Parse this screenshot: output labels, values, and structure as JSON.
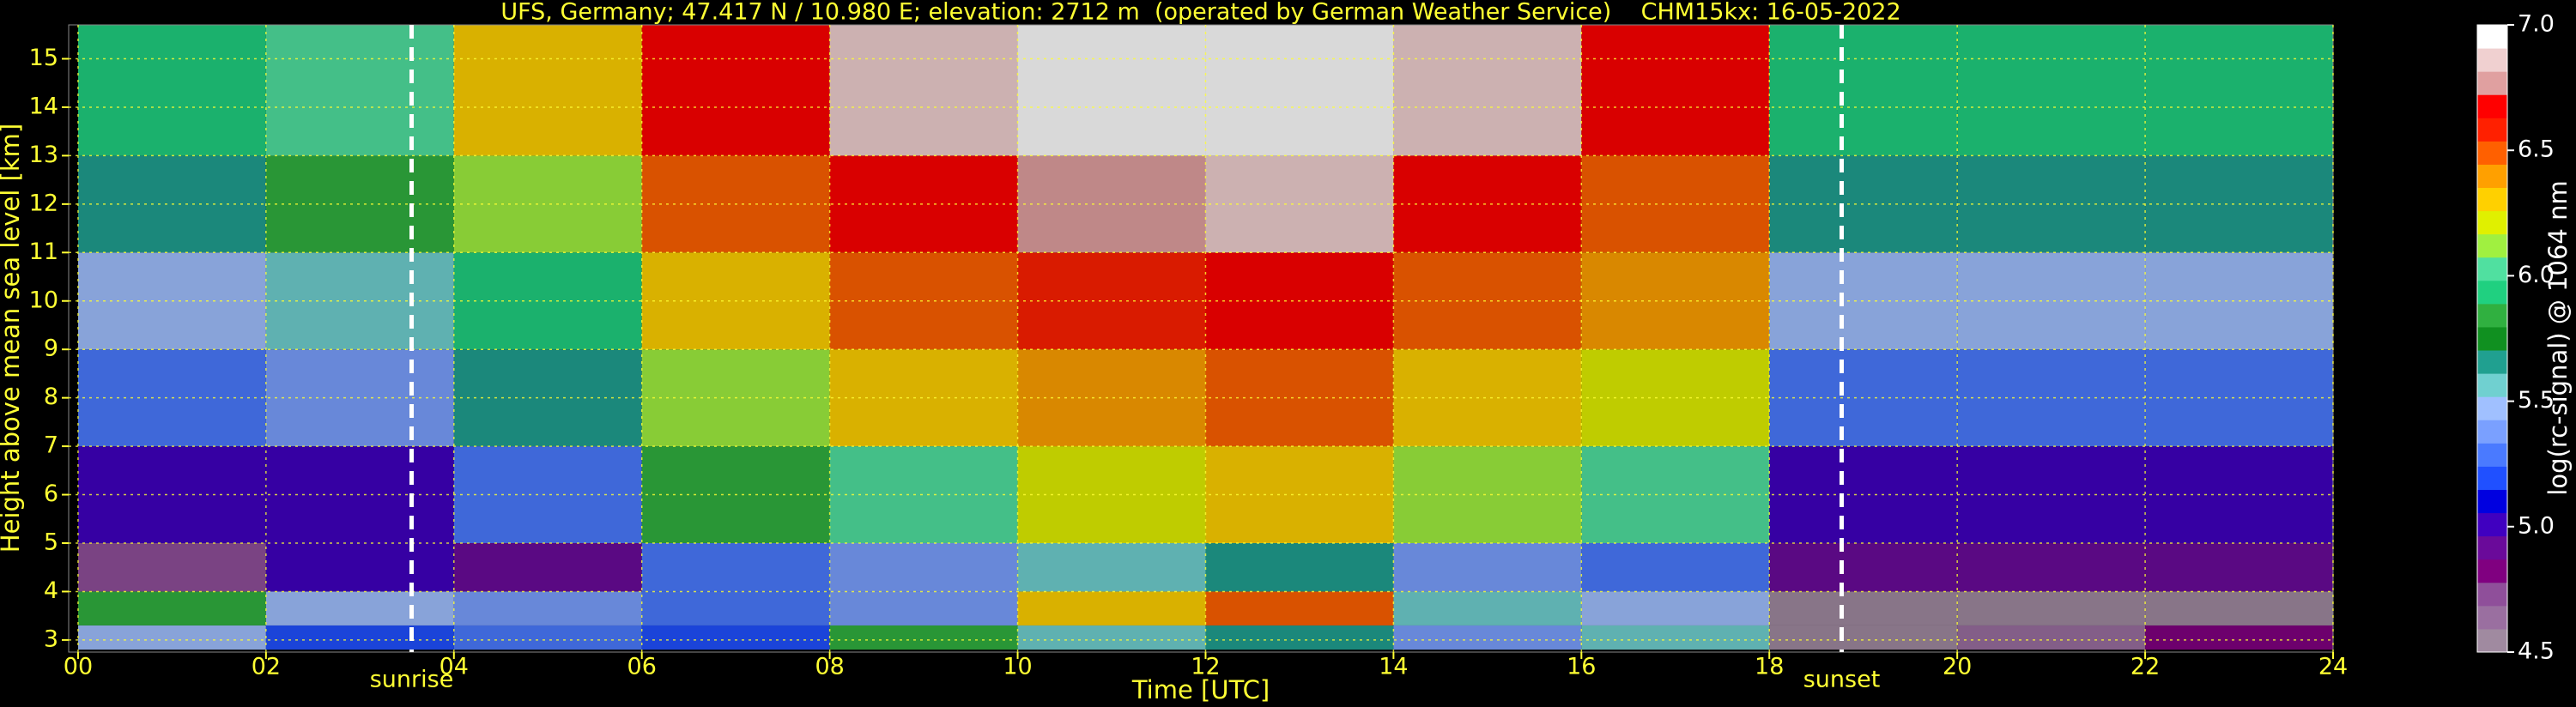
{
  "chart_data": {
    "type": "heatmap",
    "title": "UFS, Germany; 47.417 N / 10.980 E; elevation: 2712 m  (operated by German Weather Service)    CHM15kx: 16-05-2022",
    "x_label": "Time [UTC]",
    "y_label": "Height above mean sea level [km]",
    "colorbar_label": "log(rc-signal) @ 1064 nm",
    "x_bins": [
      0,
      2,
      4,
      6,
      8,
      10,
      12,
      14,
      16,
      18,
      20,
      22,
      24
    ],
    "y_bins": [
      2.8,
      3.3,
      4,
      5,
      7,
      9,
      11,
      13,
      15.7
    ],
    "values": [
      [
        5.5,
        5.2,
        5.3,
        5.2,
        5.8,
        5.6,
        5.7,
        5.4,
        5.6,
        4.5,
        4.6,
        4.8
      ],
      [
        5.8,
        5.5,
        5.4,
        5.3,
        5.4,
        6.3,
        6.5,
        5.6,
        5.5,
        4.5,
        4.5,
        4.5
      ],
      [
        4.7,
        5.0,
        4.9,
        5.3,
        5.4,
        5.6,
        5.7,
        5.4,
        5.3,
        4.9,
        4.9,
        4.9
      ],
      [
        5.0,
        5.0,
        5.3,
        5.8,
        6.0,
        6.2,
        6.3,
        6.1,
        6.0,
        5.0,
        5.0,
        5.0
      ],
      [
        5.3,
        5.4,
        5.7,
        6.1,
        6.3,
        6.4,
        6.5,
        6.3,
        6.2,
        5.3,
        5.3,
        5.3
      ],
      [
        5.5,
        5.6,
        5.9,
        6.3,
        6.5,
        6.6,
        6.7,
        6.5,
        6.4,
        5.5,
        5.5,
        5.5
      ],
      [
        5.7,
        5.8,
        6.1,
        6.5,
        6.7,
        6.8,
        6.9,
        6.7,
        6.5,
        5.7,
        5.7,
        5.7
      ],
      [
        5.9,
        6.0,
        6.3,
        6.7,
        6.9,
        7.0,
        7.0,
        6.9,
        6.7,
        5.9,
        5.9,
        5.9
      ]
    ],
    "xlim": [
      -0.1,
      24
    ],
    "ylim": [
      2.75,
      15.7
    ],
    "xticks": [
      {
        "value": 0,
        "label": "00"
      },
      {
        "value": 2,
        "label": "02"
      },
      {
        "value": 4,
        "label": "04"
      },
      {
        "value": 6,
        "label": "06"
      },
      {
        "value": 8,
        "label": "08"
      },
      10,
      12,
      14,
      16,
      18,
      20,
      22,
      24
    ],
    "yticks": [
      3,
      4,
      5,
      6,
      7,
      8,
      9,
      10,
      11,
      12,
      13,
      14,
      15
    ],
    "clim": [
      4.5,
      7
    ],
    "cticks": [
      4.5,
      {
        "value": 5,
        "label": "5.0"
      },
      5.5,
      {
        "value": 6,
        "label": "6.0"
      },
      6.5,
      {
        "value": 7,
        "label": "7.0"
      }
    ],
    "colormap": [
      "#a08aa0",
      "#9a6fa0",
      "#8f4f9a",
      "#800080",
      "#6a0a9a",
      "#4000c0",
      "#0000e0",
      "#2050ff",
      "#4a7aff",
      "#7aa0ff",
      "#a0c0ff",
      "#70d0d0",
      "#20a090",
      "#109020",
      "#30b040",
      "#20d080",
      "#50e0a0",
      "#a0f040",
      "#e0f000",
      "#ffd000",
      "#ffa000",
      "#ff6000",
      "#ff2000",
      "#ff0000",
      "#e0a0a0",
      "#f0d0d0",
      "#ffffff"
    ],
    "grid": true,
    "annotations": [
      {
        "x": 3.55,
        "label": "sunrise"
      },
      {
        "x": 18.77,
        "label": "sunset"
      }
    ]
  }
}
